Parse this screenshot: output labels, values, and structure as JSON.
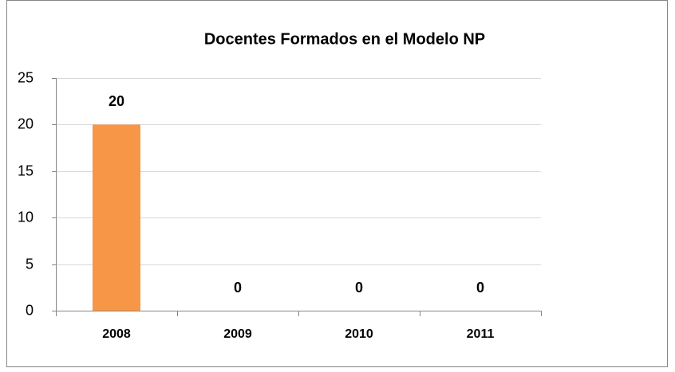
{
  "chart_data": {
    "type": "bar",
    "title": "Docentes Formados en el Modelo NP",
    "categories": [
      "2008",
      "2009",
      "2010",
      "2011"
    ],
    "values": [
      20,
      0,
      0,
      0
    ],
    "color": "#f79646",
    "ylim": [
      0,
      25
    ],
    "yticks": [
      0,
      5,
      10,
      15,
      20,
      25
    ],
    "grid": true,
    "data_labels": true
  }
}
